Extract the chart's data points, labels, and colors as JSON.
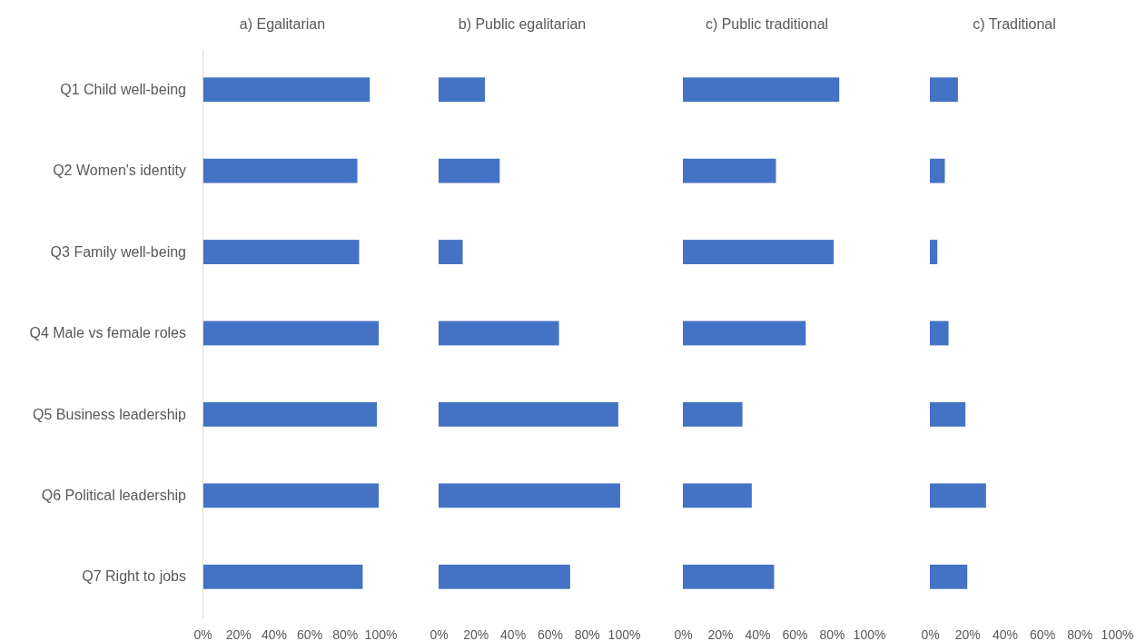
{
  "chart_data": [
    {
      "type": "bar",
      "orientation": "horizontal",
      "title": "a) Egalitarian",
      "categories": [
        "Q1 Child well-being",
        "Q2 Women's identity",
        "Q3 Family well-being",
        "Q4 Male vs female roles",
        "Q5 Business leadership",
        "Q6 Political leadership",
        "Q7 Right to jobs"
      ],
      "values": [
        0.94,
        0.87,
        0.88,
        0.99,
        0.98,
        0.99,
        0.9
      ],
      "color": "#4472c4",
      "xlim": [
        0,
        1
      ],
      "xticks": [
        {
          "value": 0,
          "label": "0%"
        },
        {
          "value": 0.2,
          "label": "20%"
        },
        {
          "value": 0.4,
          "label": "40%"
        },
        {
          "value": 0.6,
          "label": "60%"
        },
        {
          "value": 0.8,
          "label": "80%"
        },
        {
          "value": 1,
          "label": "100%"
        }
      ]
    },
    {
      "type": "bar",
      "orientation": "horizontal",
      "title": "b) Public egalitarian",
      "categories": [
        null,
        null,
        null,
        null,
        null,
        null,
        null
      ],
      "values": [
        0.25,
        0.33,
        0.13,
        0.65,
        0.97,
        0.98,
        0.71
      ],
      "color": "#4472c4",
      "xlim": [
        0,
        1
      ],
      "xticks": [
        {
          "value": 0,
          "label": "0%"
        },
        {
          "value": 0.2,
          "label": "20%"
        },
        {
          "value": 0.4,
          "label": "40%"
        },
        {
          "value": 0.6,
          "label": "60%"
        },
        {
          "value": 0.8,
          "label": "80%"
        },
        {
          "value": 1,
          "label": "100%"
        }
      ],
      "tick_labels": "x"
    },
    {
      "type": "bar",
      "orientation": "horizontal",
      "title": "c) Public traditional",
      "categories": [
        null,
        null,
        null,
        null,
        null,
        null,
        null
      ],
      "values": [
        0.84,
        0.5,
        0.81,
        0.66,
        0.32,
        0.37,
        0.49
      ],
      "color": "#4472c4",
      "xlim": [
        0,
        1
      ],
      "xticks": [
        {
          "value": 0,
          "label": "0%"
        },
        {
          "value": 0.2,
          "label": "20%"
        },
        {
          "value": 0.4,
          "label": "40%"
        },
        {
          "value": 0.6,
          "label": "60%"
        },
        {
          "value": 0.8,
          "label": "80%"
        },
        {
          "value": 1,
          "label": "100%"
        }
      ],
      "tick_labels": "x"
    },
    {
      "type": "bar",
      "orientation": "horizontal",
      "title": "c) Traditional",
      "categories": [
        null,
        null,
        null,
        null,
        null,
        null,
        null
      ],
      "values": [
        0.15,
        0.08,
        0.04,
        0.1,
        0.19,
        0.3,
        0.2
      ],
      "color": "#4472c4",
      "xlim": [
        0,
        1
      ],
      "xticks": [
        {
          "value": 0,
          "label": "0%"
        },
        {
          "value": 0.2,
          "label": "20%"
        },
        {
          "value": 0.4,
          "label": "40%"
        },
        {
          "value": 0.6,
          "label": "60%"
        },
        {
          "value": 0.8,
          "label": "80%"
        },
        {
          "value": 1,
          "label": "100%"
        }
      ],
      "tick_labels": "x"
    }
  ]
}
